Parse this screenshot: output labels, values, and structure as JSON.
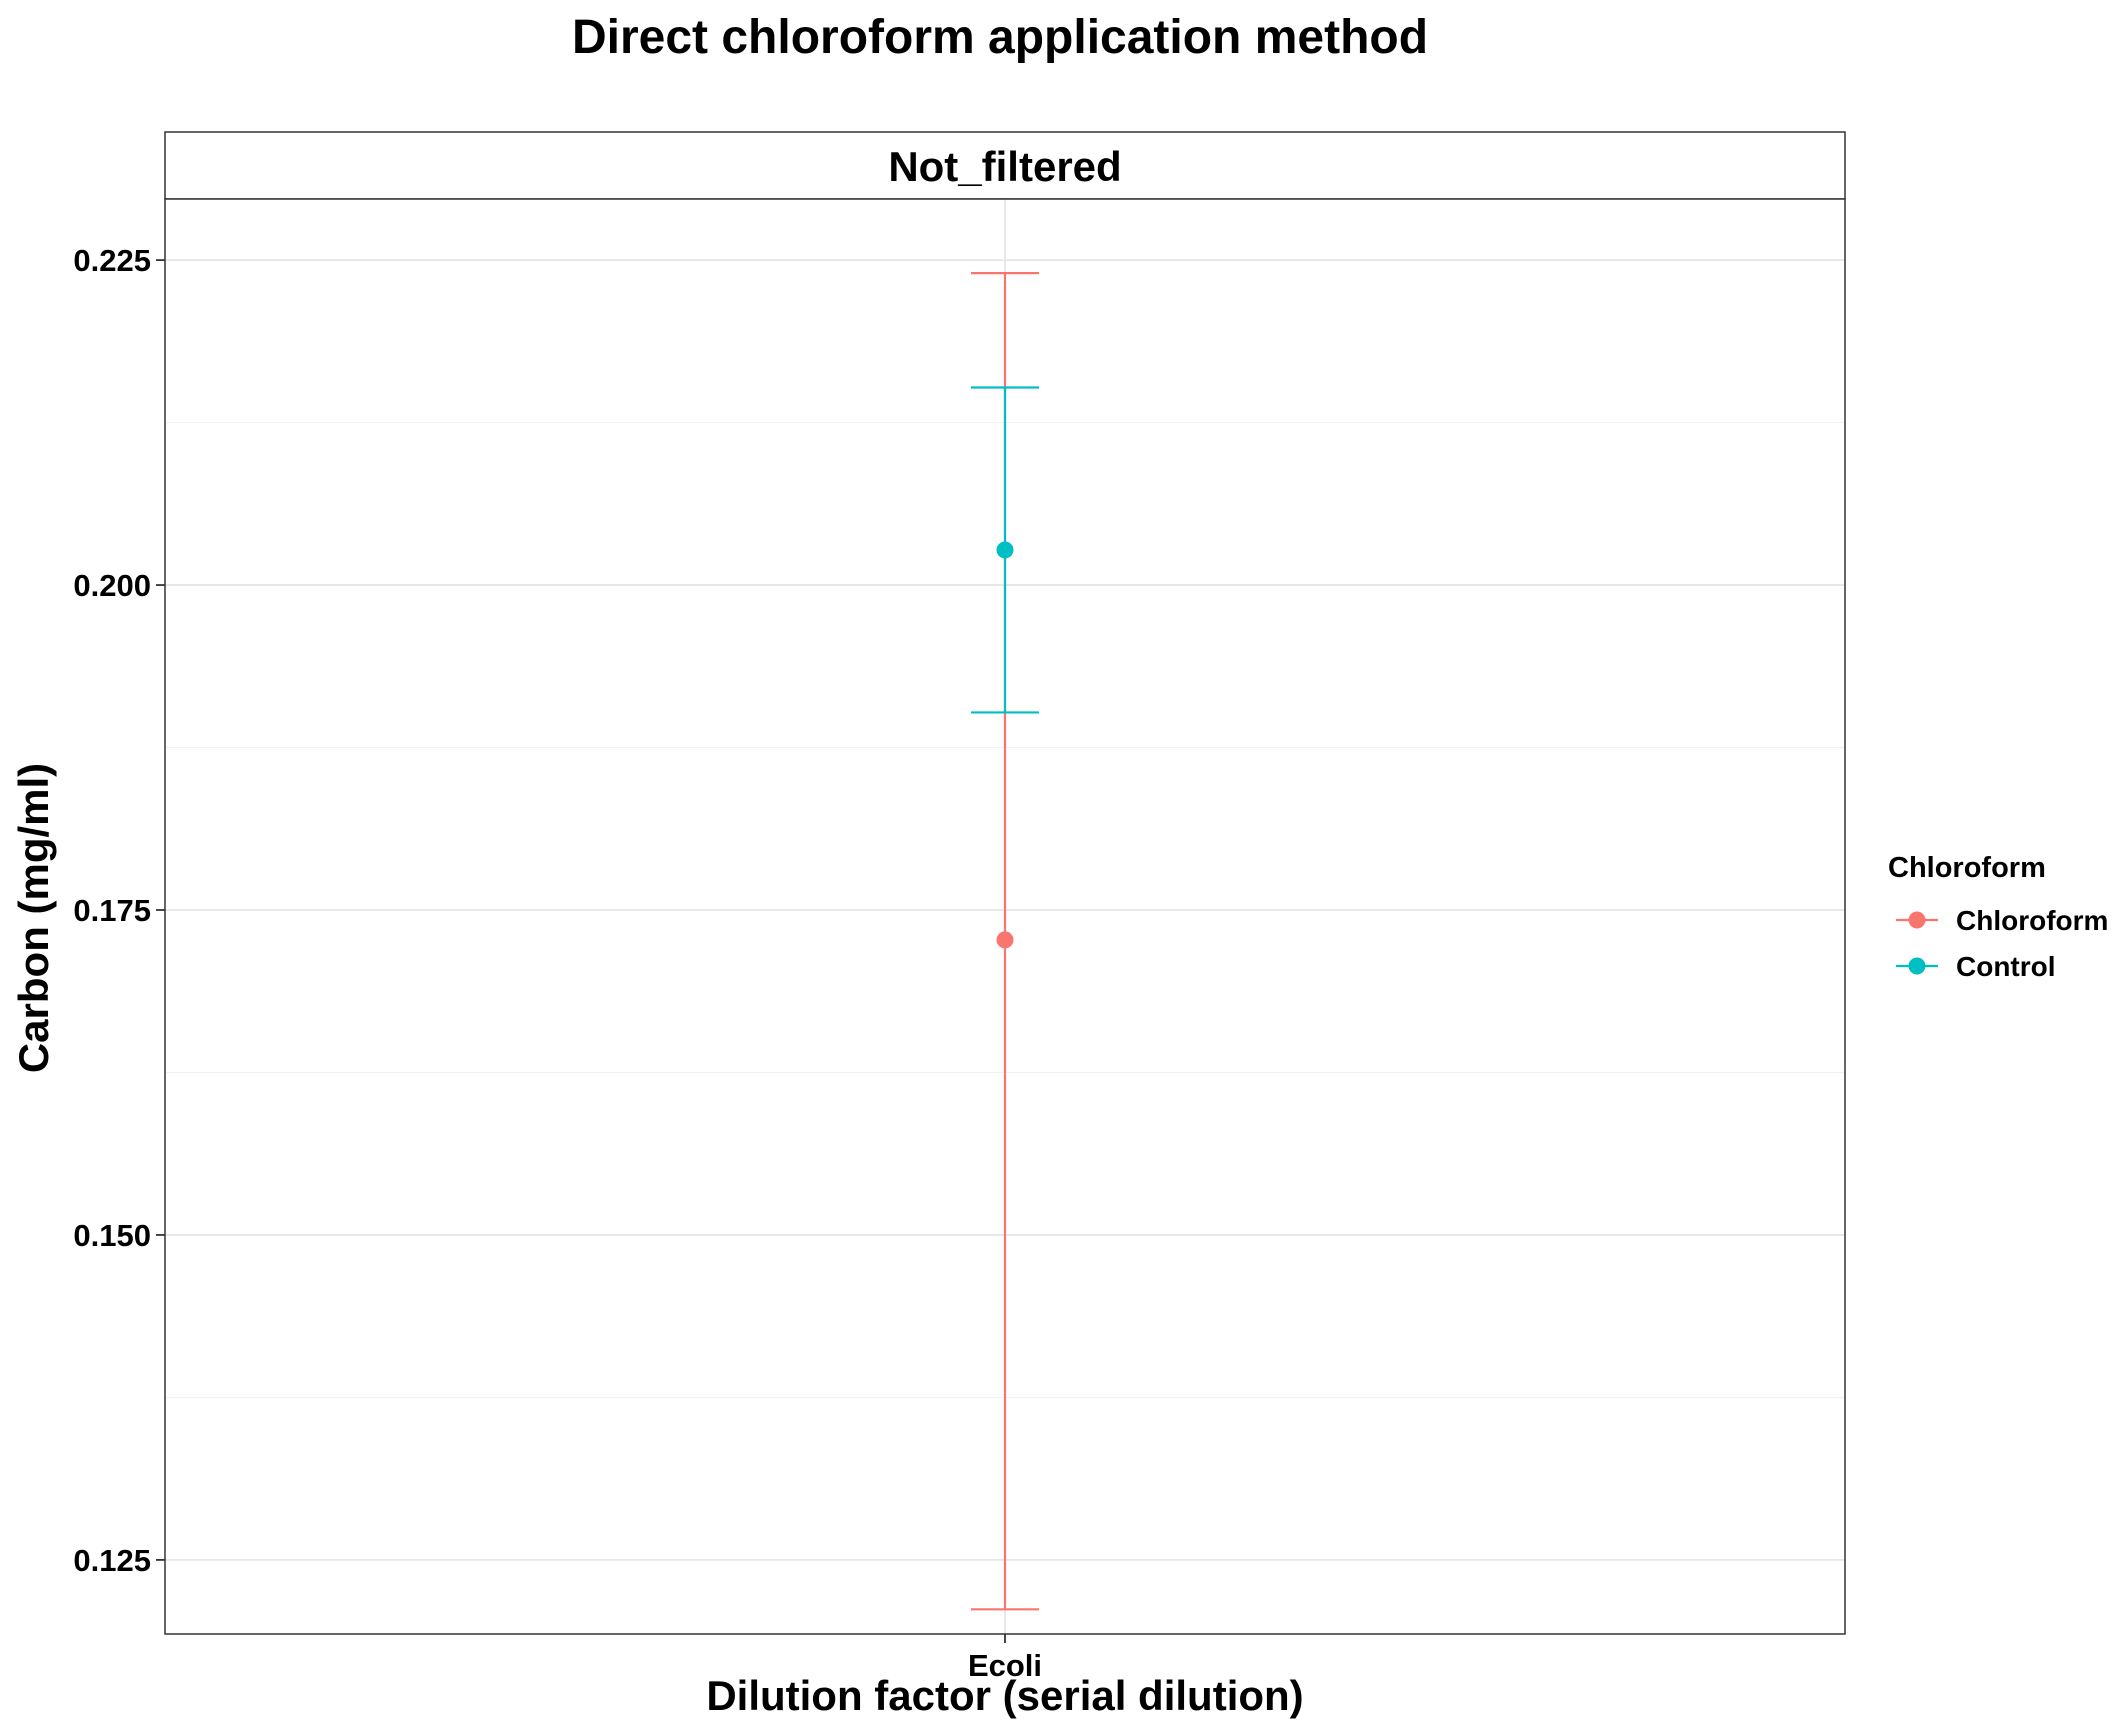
{
  "chart_data": {
    "type": "scatter",
    "title": "Direct chloroform application method",
    "facet": "Not_filtered",
    "xlabel": "Dilution factor (serial dilution)",
    "ylabel": "Carbon (mg/ml)",
    "categories": [
      "Ecoli"
    ],
    "ylim": [
      0.1193,
      0.2297
    ],
    "y_ticks": [
      0.125,
      0.15,
      0.175,
      0.2,
      0.225
    ],
    "y_tick_labels": [
      "0.125",
      "0.150",
      "0.175",
      "0.200",
      "0.225"
    ],
    "grid": true,
    "legend": {
      "title": "Chloroform",
      "position": "right"
    },
    "series": [
      {
        "name": "Chloroform",
        "color": "#F8766D",
        "x": "Ecoli",
        "y": 0.1727,
        "ymin": 0.1212,
        "ymax": 0.224
      },
      {
        "name": "Control",
        "color": "#00BFC4",
        "x": "Ecoli",
        "y": 0.2027,
        "ymin": 0.1902,
        "ymax": 0.2152
      }
    ]
  }
}
